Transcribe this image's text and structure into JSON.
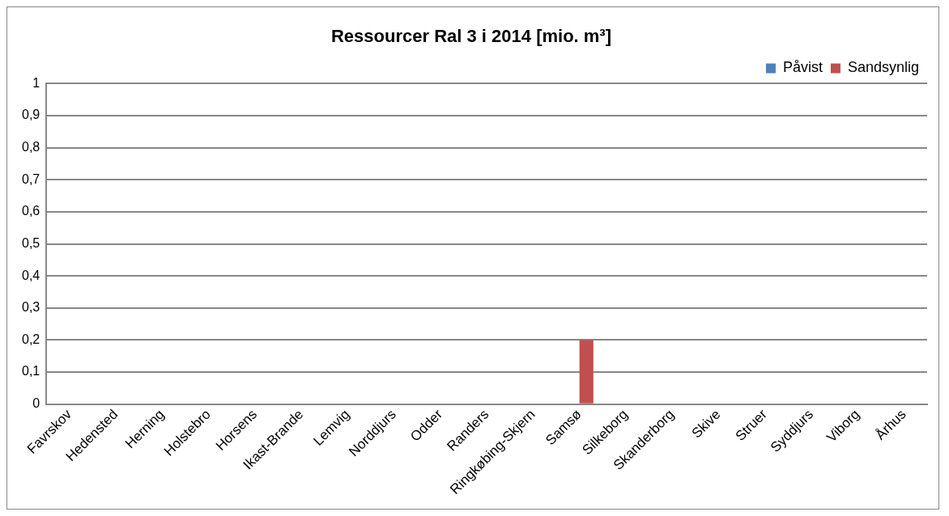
{
  "chart_data": {
    "type": "bar",
    "title": "Ressourcer Ral 3 i 2014 [mio. m³]",
    "categories": [
      "Favrskov",
      "Hedensted",
      "Herning",
      "Holstebro",
      "Horsens",
      "Ikast-Brande",
      "Lemvig",
      "Norddjurs",
      "Odder",
      "Randers",
      "Ringkøbing-Skjern",
      "Samsø",
      "Silkeborg",
      "Skanderborg",
      "Skive",
      "Struer",
      "Syddjurs",
      "Viborg",
      "Århus"
    ],
    "series": [
      {
        "name": "Påvist",
        "color": "#4f81bd",
        "values": [
          0,
          0,
          0,
          0,
          0,
          0,
          0,
          0,
          0,
          0,
          0,
          0,
          0,
          0,
          0,
          0,
          0,
          0,
          0
        ]
      },
      {
        "name": "Sandsynlig",
        "color": "#c0504d",
        "values": [
          0,
          0,
          0,
          0,
          0,
          0,
          0,
          0,
          0,
          0,
          0,
          0.2,
          0,
          0,
          0,
          0,
          0,
          0,
          0
        ]
      }
    ],
    "ylim": [
      0,
      1
    ],
    "yticks": [
      0,
      {
        "value": 0.1,
        "label": "0,1"
      },
      {
        "value": 0.2,
        "label": "0,2"
      },
      {
        "value": 0.3,
        "label": "0,3"
      },
      {
        "value": 0.4,
        "label": "0,4"
      },
      {
        "value": 0.5,
        "label": "0,5"
      },
      {
        "value": 0.6,
        "label": "0,6"
      },
      {
        "value": 0.7,
        "label": "0,7"
      },
      {
        "value": 0.8,
        "label": "0,8"
      },
      {
        "value": 0.9,
        "label": "0,9"
      },
      1
    ],
    "grid": "y",
    "legend": "top right"
  }
}
